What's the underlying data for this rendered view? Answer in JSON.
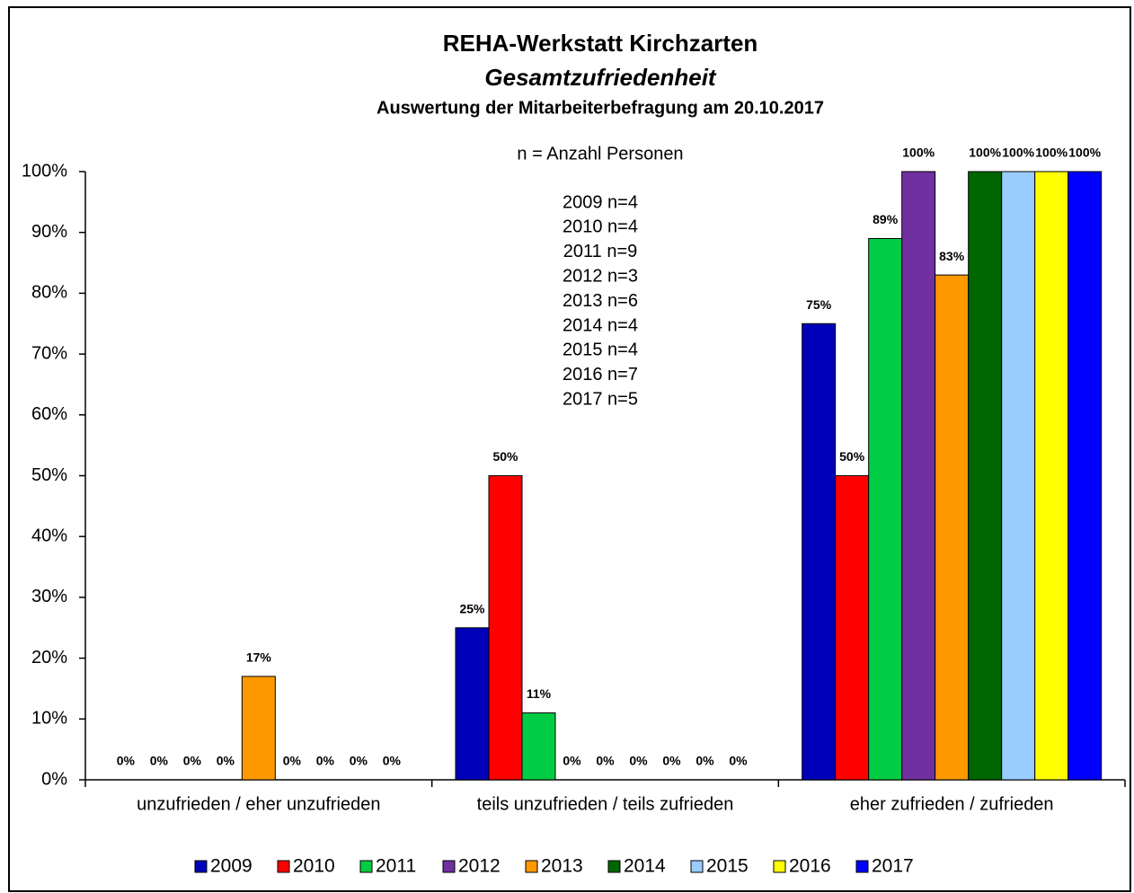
{
  "chart_data": {
    "type": "bar",
    "title": "REHA-Werkstatt Kirchzarten",
    "subtitle": "Gesamtzufriedenheit",
    "subtitle2": "Auswertung der Mitarbeiterbefragung am 20.10.2017",
    "annotations": [
      "n = Anzahl Personen",
      "2009 n=4",
      "2010 n=4",
      "2011 n=9",
      "2012 n=3",
      "2013 n=6",
      "2014 n=4",
      "2015 n=4",
      "2016 n=7",
      "2017 n=5"
    ],
    "categories": [
      "unzufrieden / eher unzufrieden",
      "teils unzufrieden / teils zufrieden",
      "eher zufrieden / zufrieden"
    ],
    "series": [
      {
        "name": "2009",
        "color": "#0000b8",
        "values": [
          0,
          25,
          75
        ],
        "value_labels": [
          "0%",
          "25%",
          "75%"
        ]
      },
      {
        "name": "2010",
        "color": "#ff0000",
        "values": [
          0,
          50,
          50
        ],
        "value_labels": [
          "0%",
          "50%",
          "50%"
        ]
      },
      {
        "name": "2011",
        "color": "#00cc44",
        "values": [
          0,
          11,
          89
        ],
        "value_labels": [
          "0%",
          "11%",
          "89%"
        ]
      },
      {
        "name": "2012",
        "color": "#7030a0",
        "values": [
          0,
          0,
          100
        ],
        "value_labels": [
          "0%",
          "0%",
          "100%"
        ]
      },
      {
        "name": "2013",
        "color": "#ff9900",
        "values": [
          17,
          0,
          83
        ],
        "value_labels": [
          "17%",
          "0%",
          "83%"
        ]
      },
      {
        "name": "2014",
        "color": "#006600",
        "values": [
          0,
          0,
          100
        ],
        "value_labels": [
          "0%",
          "0%",
          "100%"
        ]
      },
      {
        "name": "2015",
        "color": "#99ccff",
        "values": [
          0,
          0,
          100
        ],
        "value_labels": [
          "0%",
          "0%",
          "100%"
        ]
      },
      {
        "name": "2016",
        "color": "#ffff00",
        "values": [
          0,
          0,
          100
        ],
        "value_labels": [
          "0%",
          "0%",
          "100%"
        ]
      },
      {
        "name": "2017",
        "color": "#0000ff",
        "values": [
          0,
          0,
          100
        ],
        "value_labels": [
          "0%",
          "0%",
          "100%"
        ]
      }
    ],
    "ylim": [
      0,
      100
    ],
    "yticks": [
      {
        "value": 0,
        "label": "0%"
      },
      {
        "value": 10,
        "label": "10%"
      },
      {
        "value": 20,
        "label": "20%"
      },
      {
        "value": 30,
        "label": "30%"
      },
      {
        "value": 40,
        "label": "40%"
      },
      {
        "value": 50,
        "label": "50%"
      },
      {
        "value": 60,
        "label": "60%"
      },
      {
        "value": 70,
        "label": "70%"
      },
      {
        "value": 80,
        "label": "80%"
      },
      {
        "value": 90,
        "label": "90%"
      },
      {
        "value": 100,
        "label": "100%"
      }
    ],
    "legend": "bottom"
  }
}
